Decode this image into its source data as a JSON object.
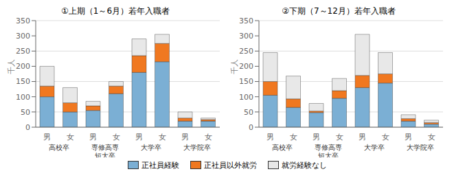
{
  "chart_data": [
    {
      "type": "bar",
      "title": "①上期（1～6月）若年入職者",
      "ylabel": "千人",
      "categories": [
        "男",
        "女",
        "男",
        "女",
        "男",
        "女",
        "男",
        "女"
      ],
      "category_groups": [
        "高校卒",
        "専修高専\n短大卒",
        "大学卒",
        "大学院卒"
      ],
      "stacked": true,
      "grid": true,
      "legend": "bottom",
      "ylim": [
        0,
        350
      ],
      "yticks": [
        0,
        50,
        100,
        150,
        200,
        250,
        300,
        350
      ],
      "series": [
        {
          "name": "正社員経験",
          "color": "#7bafd4",
          "values": [
            100,
            50,
            55,
            110,
            180,
            215,
            20,
            20
          ]
        },
        {
          "name": "正社員以外就労",
          "color": "#f07820",
          "values": [
            35,
            30,
            15,
            25,
            55,
            60,
            10,
            5
          ]
        },
        {
          "name": "就労経験なし",
          "color": "#e8e8e8",
          "values": [
            65,
            50,
            15,
            15,
            55,
            30,
            20,
            5
          ]
        }
      ]
    },
    {
      "type": "bar",
      "title": "②下期（7～12月）若年入職者",
      "ylabel": "千人",
      "categories": [
        "男",
        "女",
        "男",
        "女",
        "男",
        "女",
        "男",
        "女"
      ],
      "category_groups": [
        "高校卒",
        "専修高専\n短大卒",
        "大学卒",
        "大学院卒"
      ],
      "stacked": true,
      "grid": true,
      "legend": "bottom",
      "ylim": [
        0,
        350
      ],
      "yticks": [
        0,
        50,
        100,
        150,
        200,
        250,
        300,
        350
      ],
      "series": [
        {
          "name": "正社員経験",
          "color": "#7bafd4",
          "values": [
            105,
            65,
            48,
            95,
            130,
            145,
            20,
            10
          ]
        },
        {
          "name": "正社員以外就労",
          "color": "#f07820",
          "values": [
            45,
            28,
            5,
            25,
            40,
            30,
            8,
            5
          ]
        },
        {
          "name": "就労経験なし",
          "color": "#e8e8e8",
          "values": [
            95,
            75,
            25,
            40,
            135,
            70,
            13,
            8
          ]
        }
      ]
    }
  ]
}
